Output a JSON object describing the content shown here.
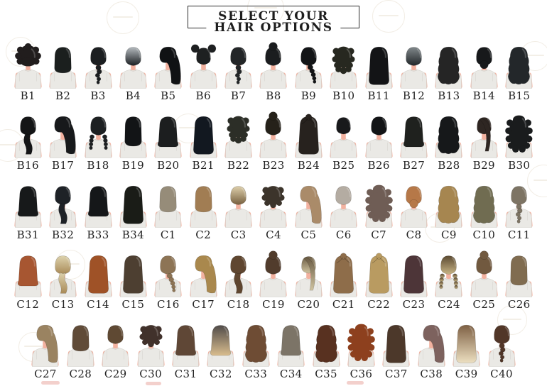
{
  "title_box": {
    "line1": "SELECT YOUR",
    "line2": "HAIR OPTIONS"
  },
  "figure": {
    "skin": "#f2b2a0",
    "shirt": "#eae9e5",
    "shirt_line": "#d6d4cf",
    "collar_line": "#cfccc6",
    "hair_outline": "rgba(0,0,0,0.25)"
  },
  "watermark": {
    "ring_color": "#c9b48f",
    "accent_color": "#e08a80"
  },
  "rows": [
    [
      {
        "label": "B1",
        "style": "afro",
        "color": "#211d1d"
      },
      {
        "label": "B2",
        "style": "bob",
        "color": "#1b1f1e"
      },
      {
        "label": "B3",
        "style": "braid",
        "color": "#1c1f21"
      },
      {
        "label": "B4",
        "style": "short",
        "color": "#1b1f22",
        "grad": [
          "#b4babe",
          "#1b1f22"
        ]
      },
      {
        "label": "B5",
        "style": "longside",
        "color": "#101214"
      },
      {
        "label": "B6",
        "style": "buns2",
        "color": "#1e2021"
      },
      {
        "label": "B7",
        "style": "braid",
        "color": "#232628"
      },
      {
        "label": "B8",
        "style": "buntop",
        "color": "#1b1d1f"
      },
      {
        "label": "B9",
        "style": "sidebraid",
        "color": "#131517"
      },
      {
        "label": "B10",
        "style": "curlymed",
        "color": "#272820"
      },
      {
        "label": "B11",
        "style": "long",
        "color": "#131416"
      },
      {
        "label": "B12",
        "style": "short",
        "color": "#22272a",
        "grad": [
          "#80878a",
          "#22272a"
        ]
      },
      {
        "label": "B13",
        "style": "wavylong",
        "color": "#252525"
      },
      {
        "label": "B14",
        "style": "bunlow",
        "color": "#17191b"
      },
      {
        "label": "B15",
        "style": "wavylong",
        "color": "#23272a"
      }
    ],
    [
      {
        "label": "B16",
        "style": "ponylow",
        "color": "#141516"
      },
      {
        "label": "B17",
        "style": "longside",
        "color": "#17191b"
      },
      {
        "label": "B18",
        "style": "twinbraids",
        "color": "#1d2022"
      },
      {
        "label": "B19",
        "style": "lob",
        "color": "#121416"
      },
      {
        "label": "B20",
        "style": "medium",
        "color": "#1c1e1f"
      },
      {
        "label": "B21",
        "style": "long",
        "color": "#121820"
      },
      {
        "label": "B22",
        "style": "curlymed",
        "color": "#2c2e27"
      },
      {
        "label": "B23",
        "style": "buntop",
        "color": "#252119"
      },
      {
        "label": "B24",
        "style": "halfup",
        "color": "#27221e"
      },
      {
        "label": "B25",
        "style": "crop",
        "color": "#18191b"
      },
      {
        "label": "B26",
        "style": "short",
        "color": "#121416"
      },
      {
        "label": "B27",
        "style": "medium",
        "color": "#1f211e"
      },
      {
        "label": "B28",
        "style": "wavylong",
        "color": "#16181a"
      },
      {
        "label": "B29",
        "style": "ponyhigh",
        "color": "#2e2622"
      },
      {
        "label": "B30",
        "style": "curlylong",
        "color": "#1a1c1d"
      }
    ],
    [
      {
        "label": "B31",
        "style": "medium",
        "color": "#17191a"
      },
      {
        "label": "B32",
        "style": "ponylow",
        "color": "#1e2227"
      },
      {
        "label": "B33",
        "style": "medium",
        "color": "#151719"
      },
      {
        "label": "B34",
        "style": "long",
        "color": "#1a1c17"
      },
      {
        "label": "C1",
        "style": "bob",
        "color": "#968c79"
      },
      {
        "label": "C2",
        "style": "bob",
        "color": "#a17d53"
      },
      {
        "label": "C3",
        "style": "short",
        "color": "#77603f",
        "grad": [
          "#ddcfab",
          "#77603f"
        ]
      },
      {
        "label": "C4",
        "style": "curlyshort",
        "color": "#3c342b"
      },
      {
        "label": "C5",
        "style": "longside",
        "color": "#aa8b69"
      },
      {
        "label": "C6",
        "style": "short",
        "color": "#b4aca2"
      },
      {
        "label": "C7",
        "style": "curlylong",
        "color": "#6f5d55"
      },
      {
        "label": "C8",
        "style": "bunlow",
        "color": "#b67848"
      },
      {
        "label": "C9",
        "style": "wavylong",
        "color": "#a68650"
      },
      {
        "label": "C10",
        "style": "wavylong",
        "color": "#706c51"
      },
      {
        "label": "C11",
        "style": "braid",
        "color": "#7d7464"
      }
    ],
    [
      {
        "label": "C12",
        "style": "medium",
        "color": "#a75631"
      },
      {
        "label": "C13",
        "style": "ponylow",
        "color": "#a98a57",
        "grad": [
          "#ddd2ad",
          "#a98a57"
        ]
      },
      {
        "label": "C14",
        "style": "long",
        "color": "#9f5227"
      },
      {
        "label": "C15",
        "style": "long",
        "color": "#4d3f31"
      },
      {
        "label": "C16",
        "style": "sidebraid",
        "color": "#8d7455"
      },
      {
        "label": "C17",
        "style": "longside",
        "color": "#a9884d"
      },
      {
        "label": "C18",
        "style": "ponylow",
        "color": "#5f4630"
      },
      {
        "label": "C19",
        "style": "buntop",
        "color": "#513c2c"
      },
      {
        "label": "C20",
        "style": "ponyhigh",
        "color": "#6b5c44",
        "grad": [
          "#6b5c44",
          "#cfc3a0"
        ]
      },
      {
        "label": "C21",
        "style": "halfup",
        "color": "#8e6d4a"
      },
      {
        "label": "C22",
        "style": "halfup",
        "color": "#b99b61"
      },
      {
        "label": "C23",
        "style": "long",
        "color": "#4d3538"
      },
      {
        "label": "C24",
        "style": "twinbraids",
        "color": "#8c7a55",
        "grad": [
          "#5c4a32",
          "#c6b384"
        ]
      },
      {
        "label": "C25",
        "style": "buntop",
        "color": "#71593f"
      },
      {
        "label": "C26",
        "style": "lob",
        "color": "#806c50"
      }
    ],
    [
      {
        "label": "C27",
        "style": "longside",
        "color": "#9a8361"
      },
      {
        "label": "C28",
        "style": "bob",
        "color": "#604b38"
      },
      {
        "label": "C29",
        "style": "short",
        "color": "#5f4933"
      },
      {
        "label": "C30",
        "style": "curlyshort",
        "color": "#41312b"
      },
      {
        "label": "C31",
        "style": "medium",
        "color": "#5f4736"
      },
      {
        "label": "C32",
        "style": "medium",
        "color": "#6a5c50",
        "grad": [
          "#504b49",
          "#d9bd8e"
        ]
      },
      {
        "label": "C33",
        "style": "wavylong",
        "color": "#6e4c34"
      },
      {
        "label": "C34",
        "style": "medium",
        "color": "#7c7467"
      },
      {
        "label": "C35",
        "style": "wavylong",
        "color": "#583120"
      },
      {
        "label": "C36",
        "style": "curlylong",
        "color": "#8d401e"
      },
      {
        "label": "C37",
        "style": "long",
        "color": "#4c382a"
      },
      {
        "label": "C38",
        "style": "longside",
        "color": "#7d625e"
      },
      {
        "label": "C39",
        "style": "long",
        "color": "#9b7c58",
        "grad": [
          "#7e6044",
          "#ecdfc0"
        ]
      },
      {
        "label": "C40",
        "style": "braid",
        "color": "#513628"
      }
    ]
  ]
}
